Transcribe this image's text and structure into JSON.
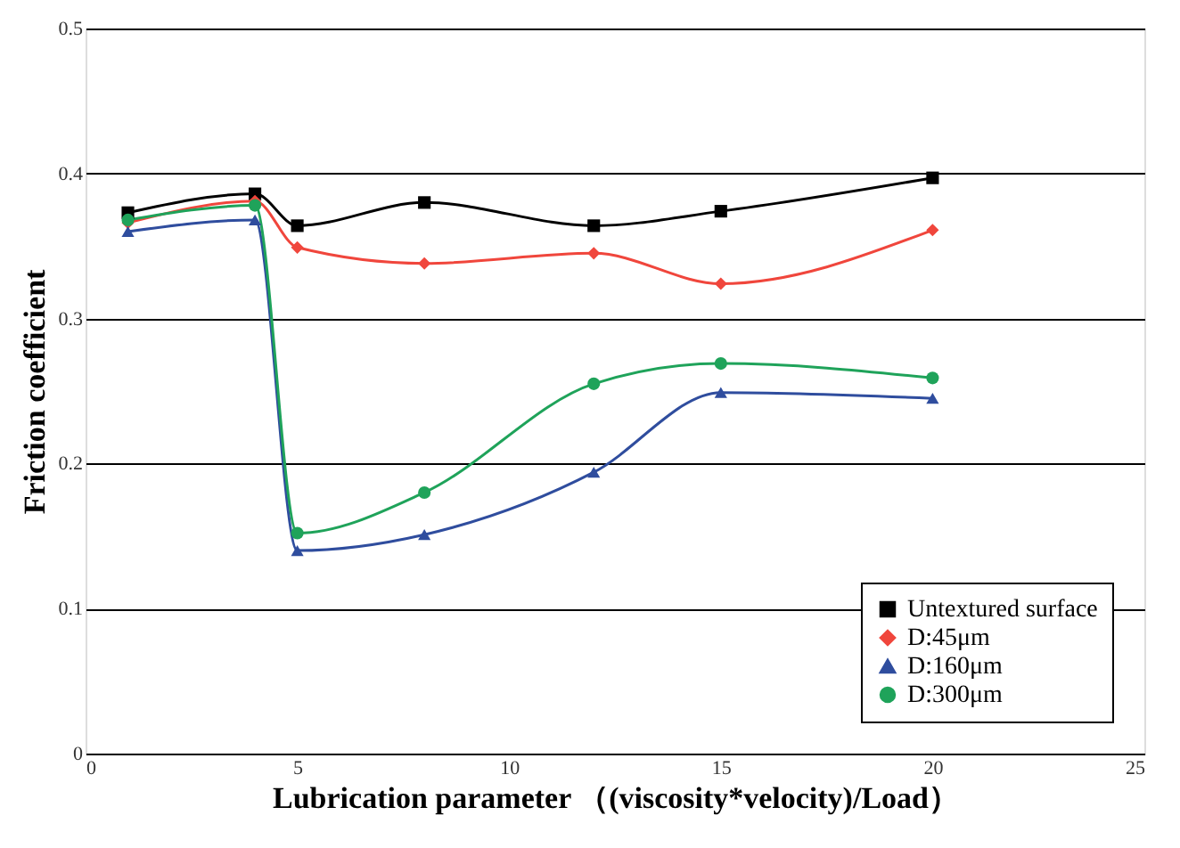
{
  "chart_data": {
    "type": "line",
    "xlabel": "Lubrication parameter （(viscosity*velocity)/Load）",
    "ylabel": "Friction coefficient",
    "x": [
      1,
      4,
      5,
      8,
      12,
      15,
      20
    ],
    "series": [
      {
        "name": "Untextured surface",
        "color": "#000000",
        "marker": "square",
        "values": [
          0.373,
          0.386,
          0.364,
          0.38,
          0.364,
          0.374,
          0.397
        ]
      },
      {
        "name": "D:45μm",
        "color": "#f0463c",
        "marker": "diamond",
        "values": [
          0.366,
          0.381,
          0.349,
          0.338,
          0.345,
          0.324,
          0.361
        ]
      },
      {
        "name": "D:160μm",
        "color": "#2f4d9e",
        "marker": "triangle",
        "values": [
          0.36,
          0.368,
          0.14,
          0.151,
          0.194,
          0.249,
          0.245
        ]
      },
      {
        "name": "D:300μm",
        "color": "#1fa35a",
        "marker": "circle",
        "values": [
          0.368,
          0.378,
          0.152,
          0.18,
          0.255,
          0.269,
          0.259
        ]
      }
    ],
    "xlim": [
      0,
      25
    ],
    "xticks": [
      0,
      5,
      10,
      15,
      20,
      25
    ],
    "ylim": [
      0,
      0.5
    ],
    "yticks": [
      0,
      0.1,
      0.2,
      0.3,
      0.4,
      0.5
    ],
    "grid": "y",
    "legend": "bottom right",
    "line_style": "solid"
  }
}
